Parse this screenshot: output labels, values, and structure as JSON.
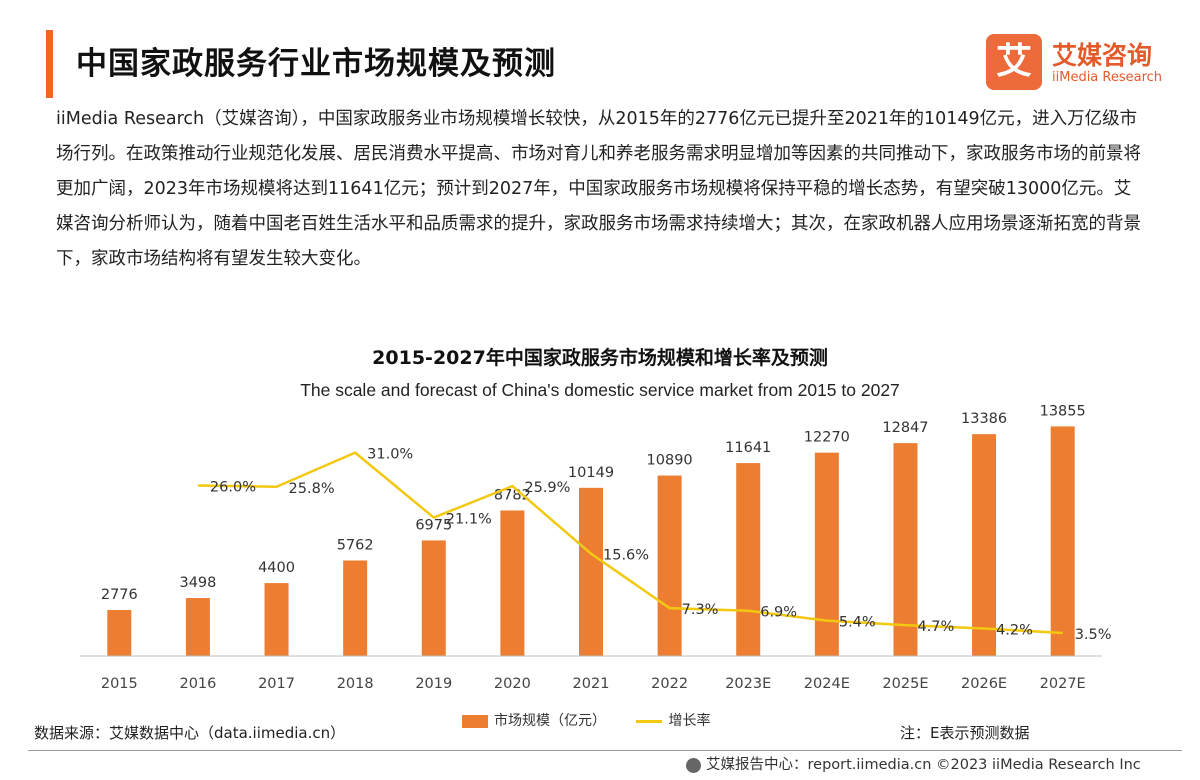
{
  "header": {
    "title": "中国家政服务行业市场规模及预测"
  },
  "logo": {
    "mark": "艾",
    "name_cn": "艾媒咨询",
    "name_en": "iiMedia Research"
  },
  "intro_text": "iiMedia Research（艾媒咨询），中国家政服务业市场规模增长较快，从2015年的2776亿元已提升至2021年的10149亿元，进入万亿级市场行列。在政策推动行业规范化发展、居民消费水平提高、市场对育儿和养老服务需求明显增加等因素的共同推动下，家政服务市场的前景将更加广阔，2023年市场规模将达到11641亿元；预计到2027年，中国家政服务市场规模将保持平稳的增长态势，有望突破13000亿元。艾媒咨询分析师认为，随着中国老百姓生活水平和品质需求的提升，家政服务市场需求持续增大；其次，在家政机器人应用场景逐渐拓宽的背景下，家政市场结构将有望发生较大变化。",
  "chart_data": {
    "type": "bar",
    "title": "2015-2027年中国家政服务市场规模和增长率及预测",
    "subtitle": "The scale and forecast of China's domestic service market from 2015 to 2027",
    "categories": [
      "2015",
      "2016",
      "2017",
      "2018",
      "2019",
      "2020",
      "2021",
      "2022",
      "2023E",
      "2024E",
      "2025E",
      "2026E",
      "2027E"
    ],
    "series": [
      {
        "name": "市场规模（亿元）",
        "type": "bar",
        "color": "#ed7d31",
        "values": [
          2776,
          3498,
          4400,
          5762,
          6975,
          8782,
          10149,
          10890,
          11641,
          12270,
          12847,
          13386,
          13855
        ],
        "labels": [
          "2776",
          "3498",
          "4400",
          "5762",
          "6975",
          "8782",
          "10149",
          "10890",
          "11641",
          "12270",
          "12847",
          "13386",
          "13855"
        ]
      },
      {
        "name": "增长率",
        "type": "line",
        "color": "#f2c811",
        "values": [
          null,
          26.0,
          25.8,
          31.0,
          21.1,
          25.9,
          15.6,
          7.3,
          6.9,
          5.4,
          4.7,
          4.2,
          3.5
        ],
        "labels": [
          "",
          "26.0%",
          "25.8%",
          "31.0%",
          "21.1%",
          "25.9%",
          "15.6%",
          "7.3%",
          "6.9%",
          "5.4%",
          "4.7%",
          "4.2%",
          "3.5%"
        ]
      }
    ],
    "legend_position": "bottom",
    "grid": false
  },
  "source": "数据来源：艾媒数据中心（data.iimedia.cn）",
  "note": "注：E表示预测数据",
  "footer": "艾媒报告中心：report.iimedia.cn  ©2023  iiMedia Research  Inc"
}
